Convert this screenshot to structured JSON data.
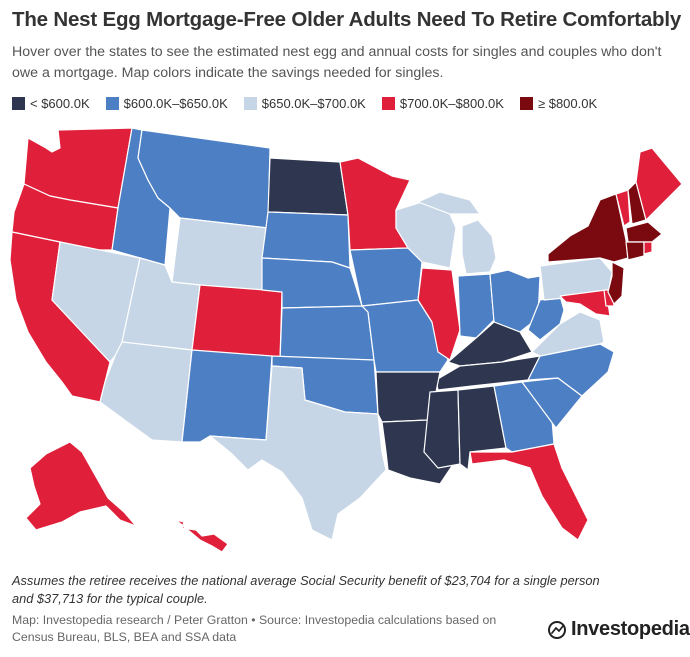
{
  "header": {
    "title": "The Nest Egg Mortgage-Free Older Adults Need To Retire Comfortably",
    "subtitle": "Hover over the states to see the estimated nest egg and annual costs for singles and couples who don't owe a mortgage. Map colors indicate the savings needed for singles."
  },
  "legend": [
    {
      "label": "< $600.0K",
      "color": "#2e3650"
    },
    {
      "label": "$600.0K–$650.0K",
      "color": "#4d7fc4"
    },
    {
      "label": "$650.0K–$700.0K",
      "color": "#c7d6e6"
    },
    {
      "label": "$700.0K–$800.0K",
      "color": "#e0203a"
    },
    {
      "label": "≥ $800.0K",
      "color": "#7a0a10"
    }
  ],
  "map": {
    "colors": {
      "lt600": "#2e3650",
      "600_650": "#4d7fc4",
      "650_700": "#c7d6e6",
      "700_800": "#e0203a",
      "ge800": "#7a0a10"
    }
  },
  "footer": {
    "note": "Assumes the retiree receives the national average Social Security benefit of $23,704 for a single person and $37,713 for the typical couple.",
    "source": "Map: Investopedia research / Peter Gratton • Source: Investopedia calculations based on Census Bureau, BLS, BEA and SSA data",
    "brand": "Investopedia"
  }
}
